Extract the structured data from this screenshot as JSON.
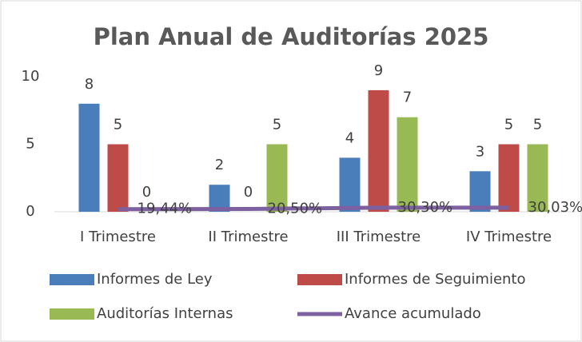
{
  "chart_data": {
    "type": "bar",
    "title": "Plan Anual de Auditorías 2025",
    "categories": [
      "I Trimestre",
      "II Trimestre",
      "III Trimestre",
      "IV Trimestre"
    ],
    "series": [
      {
        "name": "Informes de Ley",
        "type": "bar",
        "color": "#4a7ebb",
        "values": [
          8,
          2,
          4,
          3
        ]
      },
      {
        "name": "Informes de Seguimiento",
        "type": "bar",
        "color": "#be4b48",
        "values": [
          5,
          0,
          9,
          5
        ]
      },
      {
        "name": "Auditorías Internas",
        "type": "bar",
        "color": "#98b954",
        "values": [
          0,
          5,
          7,
          5
        ]
      },
      {
        "name": "Avance acumulado",
        "type": "line",
        "color": "#7d60a0",
        "values": [
          0.1944,
          0.205,
          0.303,
          0.3003
        ],
        "value_labels": [
          "19,44%",
          "20,50%",
          "30,30%",
          "30,03%"
        ]
      }
    ],
    "ylim": [
      0,
      10
    ],
    "yticks": [
      0,
      5,
      10
    ],
    "grid": false,
    "legend": "bottom"
  }
}
